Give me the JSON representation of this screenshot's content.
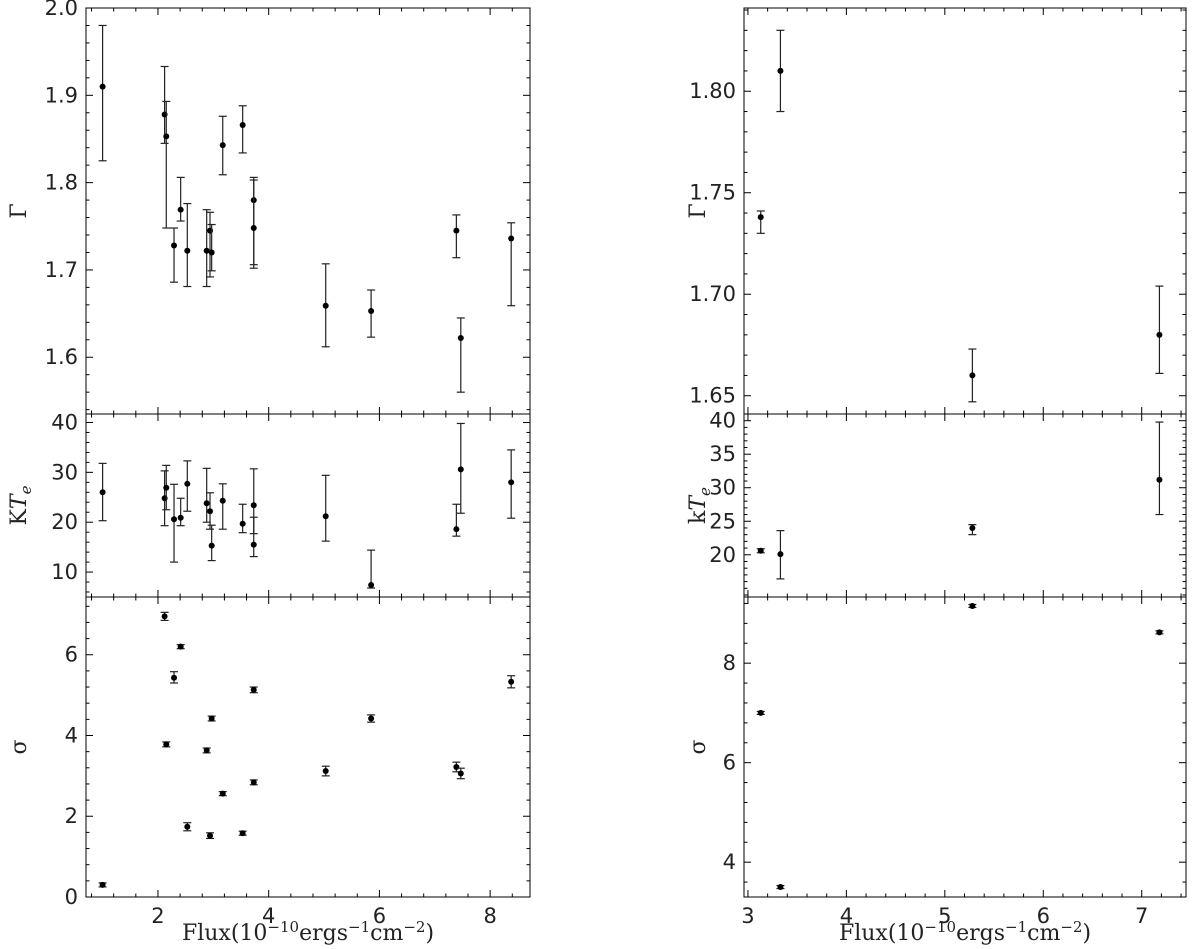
{
  "chart_data": [
    {
      "type": "scatter",
      "group": "left",
      "panels": [
        {
          "ylabel": "Γ",
          "ylim": [
            1.535,
            2.0
          ],
          "yticks": [
            1.6,
            1.7,
            1.8,
            1.9,
            2.0
          ],
          "tick_labels": [
            "1.6",
            "1.7",
            "1.8",
            "1.9",
            "2.0"
          ],
          "points": [
            {
              "x": 1.0,
              "y": 1.91,
              "lo": 1.825,
              "hi": 1.98
            },
            {
              "x": 2.12,
              "y": 1.878,
              "lo": 1.845,
              "hi": 1.933
            },
            {
              "x": 2.15,
              "y": 1.853,
              "lo": 1.748,
              "hi": 1.893
            },
            {
              "x": 2.29,
              "y": 1.728,
              "lo": 1.686,
              "hi": 1.748
            },
            {
              "x": 2.41,
              "y": 1.769,
              "lo": 1.756,
              "hi": 1.806
            },
            {
              "x": 2.53,
              "y": 1.722,
              "lo": 1.681,
              "hi": 1.776
            },
            {
              "x": 2.88,
              "y": 1.722,
              "lo": 1.681,
              "hi": 1.769
            },
            {
              "x": 2.94,
              "y": 1.745,
              "lo": 1.692,
              "hi": 1.766
            },
            {
              "x": 2.97,
              "y": 1.72,
              "lo": 1.699,
              "hi": 1.752
            },
            {
              "x": 3.17,
              "y": 1.843,
              "lo": 1.809,
              "hi": 1.876
            },
            {
              "x": 3.53,
              "y": 1.866,
              "lo": 1.834,
              "hi": 1.888
            },
            {
              "x": 3.73,
              "y": 1.78,
              "lo": 1.706,
              "hi": 1.806
            },
            {
              "x": 3.73,
              "y": 1.748,
              "lo": 1.702,
              "hi": 1.803
            },
            {
              "x": 5.03,
              "y": 1.659,
              "lo": 1.612,
              "hi": 1.707
            },
            {
              "x": 5.85,
              "y": 1.653,
              "lo": 1.623,
              "hi": 1.677
            },
            {
              "x": 7.39,
              "y": 1.745,
              "lo": 1.714,
              "hi": 1.763
            },
            {
              "x": 7.47,
              "y": 1.622,
              "lo": 1.56,
              "hi": 1.645
            },
            {
              "x": 8.38,
              "y": 1.736,
              "lo": 1.659,
              "hi": 1.754
            }
          ]
        },
        {
          "ylabel": "KT_e",
          "ylim": [
            5.0,
            41.7
          ],
          "yticks": [
            10,
            20,
            30,
            40
          ],
          "tick_labels": [
            "10",
            "20",
            "30",
            "40"
          ],
          "points": [
            {
              "x": 1.0,
              "y": 26.0,
              "lo": 20.3,
              "hi": 31.8
            },
            {
              "x": 2.12,
              "y": 24.8,
              "lo": 19.3,
              "hi": 30.3
            },
            {
              "x": 2.15,
              "y": 26.9,
              "lo": 22.5,
              "hi": 31.4
            },
            {
              "x": 2.29,
              "y": 20.6,
              "lo": 12.0,
              "hi": 27.6
            },
            {
              "x": 2.41,
              "y": 20.9,
              "lo": 19.3,
              "hi": 24.8
            },
            {
              "x": 2.53,
              "y": 27.7,
              "lo": 22.2,
              "hi": 32.3
            },
            {
              "x": 2.88,
              "y": 23.8,
              "lo": 20.0,
              "hi": 30.8
            },
            {
              "x": 2.94,
              "y": 22.2,
              "lo": 18.6,
              "hi": 25.9
            },
            {
              "x": 2.97,
              "y": 15.3,
              "lo": 12.3,
              "hi": 19.4
            },
            {
              "x": 3.17,
              "y": 24.3,
              "lo": 18.6,
              "hi": 27.7
            },
            {
              "x": 3.53,
              "y": 19.7,
              "lo": 17.9,
              "hi": 23.6
            },
            {
              "x": 3.73,
              "y": 23.4,
              "lo": 17.7,
              "hi": 30.7
            },
            {
              "x": 3.73,
              "y": 15.5,
              "lo": 13.1,
              "hi": 21.0
            },
            {
              "x": 5.03,
              "y": 21.2,
              "lo": 16.2,
              "hi": 29.4
            },
            {
              "x": 5.85,
              "y": 7.4,
              "lo": 6.8,
              "hi": 14.4
            },
            {
              "x": 7.39,
              "y": 18.6,
              "lo": 17.2,
              "hi": 23.6
            },
            {
              "x": 7.47,
              "y": 30.6,
              "lo": 21.8,
              "hi": 39.8
            },
            {
              "x": 8.38,
              "y": 28.0,
              "lo": 20.8,
              "hi": 34.5
            }
          ]
        },
        {
          "ylabel": "σ",
          "ylim": [
            0.0,
            7.43
          ],
          "yticks": [
            0,
            2,
            4,
            6
          ],
          "tick_labels": [
            "0",
            "2",
            "4",
            "6"
          ],
          "points": [
            {
              "x": 1.0,
              "y": 0.3,
              "lo": 0.25,
              "hi": 0.35
            },
            {
              "x": 2.12,
              "y": 6.95,
              "lo": 6.85,
              "hi": 7.05
            },
            {
              "x": 2.15,
              "y": 3.78,
              "lo": 3.72,
              "hi": 3.84
            },
            {
              "x": 2.29,
              "y": 5.43,
              "lo": 5.3,
              "hi": 5.58
            },
            {
              "x": 2.41,
              "y": 6.2,
              "lo": 6.15,
              "hi": 6.25
            },
            {
              "x": 2.53,
              "y": 1.74,
              "lo": 1.64,
              "hi": 1.84
            },
            {
              "x": 2.88,
              "y": 3.63,
              "lo": 3.57,
              "hi": 3.69
            },
            {
              "x": 2.94,
              "y": 1.52,
              "lo": 1.45,
              "hi": 1.59
            },
            {
              "x": 2.97,
              "y": 4.42,
              "lo": 4.36,
              "hi": 4.48
            },
            {
              "x": 3.17,
              "y": 2.56,
              "lo": 2.51,
              "hi": 2.61
            },
            {
              "x": 3.53,
              "y": 1.58,
              "lo": 1.53,
              "hi": 1.63
            },
            {
              "x": 3.73,
              "y": 5.13,
              "lo": 5.06,
              "hi": 5.2
            },
            {
              "x": 3.73,
              "y": 2.84,
              "lo": 2.78,
              "hi": 2.9
            },
            {
              "x": 5.03,
              "y": 3.12,
              "lo": 3.0,
              "hi": 3.24
            },
            {
              "x": 5.85,
              "y": 4.42,
              "lo": 4.33,
              "hi": 4.51
            },
            {
              "x": 7.39,
              "y": 3.22,
              "lo": 3.1,
              "hi": 3.34
            },
            {
              "x": 7.47,
              "y": 3.06,
              "lo": 2.93,
              "hi": 3.19
            },
            {
              "x": 8.38,
              "y": 5.33,
              "lo": 5.18,
              "hi": 5.48
            }
          ]
        }
      ],
      "xlim": [
        0.7,
        8.72
      ],
      "xticks": [
        2,
        4,
        6,
        8
      ],
      "xtick_labels": [
        "2",
        "4",
        "6",
        "8"
      ],
      "xlabel": "Flux(10−10ergs−1cm−2)"
    },
    {
      "type": "scatter",
      "group": "right",
      "panels": [
        {
          "ylabel": "Γ",
          "ylim": [
            1.641,
            1.841
          ],
          "yticks": [
            1.65,
            1.7,
            1.75,
            1.8
          ],
          "tick_labels": [
            "1.65",
            "1.70",
            "1.75",
            "1.80"
          ],
          "points": [
            {
              "x": 3.13,
              "y": 1.738,
              "lo": 1.73,
              "hi": 1.741
            },
            {
              "x": 3.33,
              "y": 1.81,
              "lo": 1.79,
              "hi": 1.83
            },
            {
              "x": 5.28,
              "y": 1.66,
              "lo": 1.647,
              "hi": 1.673
            },
            {
              "x": 7.18,
              "y": 1.68,
              "lo": 1.661,
              "hi": 1.704
            }
          ]
        },
        {
          "ylabel": "kT_e",
          "ylim": [
            13.7,
            41.0
          ],
          "yticks": [
            20,
            25,
            30,
            35,
            40
          ],
          "tick_labels": [
            "20",
            "25",
            "30",
            "35",
            "40"
          ],
          "points": [
            {
              "x": 3.13,
              "y": 20.6,
              "lo": 20.3,
              "hi": 20.9
            },
            {
              "x": 3.33,
              "y": 20.1,
              "lo": 16.4,
              "hi": 23.6
            },
            {
              "x": 5.28,
              "y": 24.0,
              "lo": 23.0,
              "hi": 24.5
            },
            {
              "x": 7.18,
              "y": 31.2,
              "lo": 26.0,
              "hi": 39.8
            }
          ]
        },
        {
          "ylabel": "σ",
          "ylim": [
            3.3,
            9.33
          ],
          "yticks": [
            4,
            6,
            8
          ],
          "tick_labels": [
            "4",
            "6",
            "8"
          ],
          "points": [
            {
              "x": 3.13,
              "y": 7.0,
              "lo": 6.97,
              "hi": 7.03
            },
            {
              "x": 3.33,
              "y": 3.5,
              "lo": 3.47,
              "hi": 3.53
            },
            {
              "x": 5.28,
              "y": 9.15,
              "lo": 9.12,
              "hi": 9.18
            },
            {
              "x": 7.18,
              "y": 8.62,
              "lo": 8.59,
              "hi": 8.65
            }
          ]
        }
      ],
      "xlim": [
        2.96,
        7.45
      ],
      "xticks": [
        3,
        4,
        5,
        6,
        7
      ],
      "xtick_labels": [
        "3",
        "4",
        "5",
        "6",
        "7"
      ],
      "xlabel": "Flux(10−10ergs−1cm−2)"
    }
  ]
}
